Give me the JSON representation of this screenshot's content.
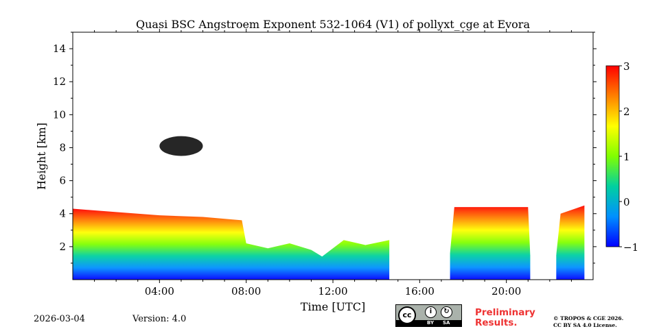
{
  "chart_data": {
    "type": "heatmap",
    "title": "Quasi BSC Angstroem Exponent 532-1064 (V1) of pollyxt_cge at Evora",
    "xlabel": "Time [UTC]",
    "ylabel": "Height [km]",
    "xlim": [
      0,
      24
    ],
    "ylim": [
      0,
      15
    ],
    "x_ticks": [
      {
        "value": 4,
        "label": "04:00"
      },
      {
        "value": 8,
        "label": "08:00"
      },
      {
        "value": 12,
        "label": "12:00"
      },
      {
        "value": 16,
        "label": "16:00"
      },
      {
        "value": 20,
        "label": "20:00"
      }
    ],
    "y_ticks": [
      {
        "value": 2,
        "label": "2"
      },
      {
        "value": 4,
        "label": "4"
      },
      {
        "value": 6,
        "label": "6"
      },
      {
        "value": 8,
        "label": "8"
      },
      {
        "value": 10,
        "label": "10"
      },
      {
        "value": 12,
        "label": "12"
      },
      {
        "value": 14,
        "label": "14"
      }
    ],
    "colorbar": {
      "range": [
        -1,
        3
      ],
      "ticks": [
        {
          "value": -1,
          "label": "−1"
        },
        {
          "value": 0,
          "label": "0"
        },
        {
          "value": 1,
          "label": "1"
        },
        {
          "value": 2,
          "label": "2"
        },
        {
          "value": 3,
          "label": "3"
        }
      ],
      "colors": [
        "#0000ff",
        "#0090ff",
        "#00d0a0",
        "#80ff00",
        "#ffff00",
        "#ff8000",
        "#ff0000"
      ]
    },
    "layer_top_km": [
      {
        "t": 0.0,
        "h": 4.3
      },
      {
        "t": 2.0,
        "h": 4.1
      },
      {
        "t": 4.0,
        "h": 3.9
      },
      {
        "t": 6.0,
        "h": 3.8
      },
      {
        "t": 7.8,
        "h": 3.6
      },
      {
        "t": 8.0,
        "h": 2.2
      },
      {
        "t": 9.0,
        "h": 1.9
      },
      {
        "t": 10.0,
        "h": 2.2
      },
      {
        "t": 11.0,
        "h": 1.8
      },
      {
        "t": 11.5,
        "h": 1.4
      },
      {
        "t": 12.5,
        "h": 2.4
      },
      {
        "t": 13.5,
        "h": 2.1
      },
      {
        "t": 14.6,
        "h": 2.4
      },
      {
        "t": 15.0,
        "h": 0.0
      },
      {
        "t": 17.4,
        "h": 1.6
      },
      {
        "t": 17.6,
        "h": 4.4
      },
      {
        "t": 21.0,
        "h": 4.4
      },
      {
        "t": 21.1,
        "h": 1.5
      },
      {
        "t": 22.3,
        "h": 1.5
      },
      {
        "t": 22.5,
        "h": 4.0
      },
      {
        "t": 23.6,
        "h": 4.5
      }
    ],
    "gaps_utc": [
      [
        15.0,
        17.4
      ],
      [
        21.1,
        22.3
      ]
    ],
    "elevated_layer": {
      "t_start": 4.0,
      "t_end": 6.0,
      "h_bottom": 7.5,
      "h_top": 8.7
    }
  },
  "footer": {
    "date": "2026-03-04",
    "version": "Version: 4.0",
    "preliminary": [
      "Preliminary",
      "Results."
    ],
    "copyright": [
      "© TROPOS & CGE 2026.",
      "CC BY SA 4.0 License."
    ],
    "license_labels": {
      "cc": "cc",
      "by": "BY",
      "sa": "SA"
    }
  }
}
